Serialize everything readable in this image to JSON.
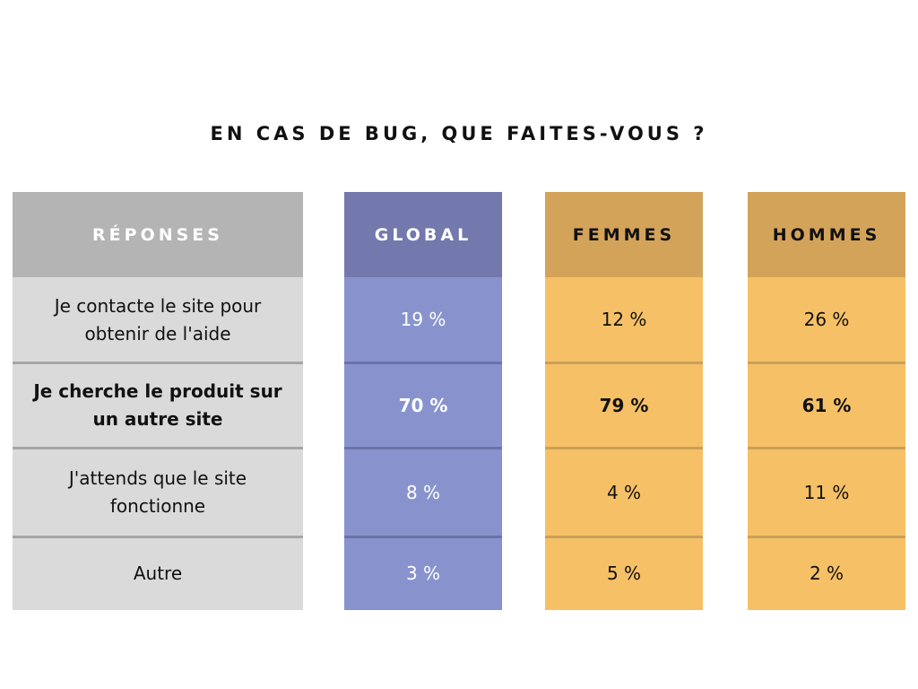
{
  "title": "EN CAS DE BUG, QUE FAITES-VOUS ?",
  "colors": {
    "reponses_header": "#b4b4b4",
    "reponses_body": "#dadada",
    "global_header": "#7378ad",
    "global_body": "#8893ce",
    "gender_header": "#d4a35a",
    "gender_body": "#f6c066"
  },
  "chart_data": {
    "type": "table",
    "title": "EN CAS DE BUG, QUE FAITES-VOUS ?",
    "columns": [
      "RÉPONSES",
      "GLOBAL",
      "FEMMES",
      "HOMMES"
    ],
    "rows": [
      {
        "reponse": "Je contacte le site pour obtenir de l'aide",
        "global": "19 %",
        "femmes": "12 %",
        "hommes": "26 %",
        "highlight": false
      },
      {
        "reponse": "Je cherche le produit sur un autre site",
        "global": "70 %",
        "femmes": "79 %",
        "hommes": "61 %",
        "highlight": true
      },
      {
        "reponse": "J'attends que le site fonctionne",
        "global": "8 %",
        "femmes": "4 %",
        "hommes": "11 %",
        "highlight": false
      },
      {
        "reponse": "Autre",
        "global": "3 %",
        "femmes": "5 %",
        "hommes": "2 %",
        "highlight": false
      }
    ]
  }
}
